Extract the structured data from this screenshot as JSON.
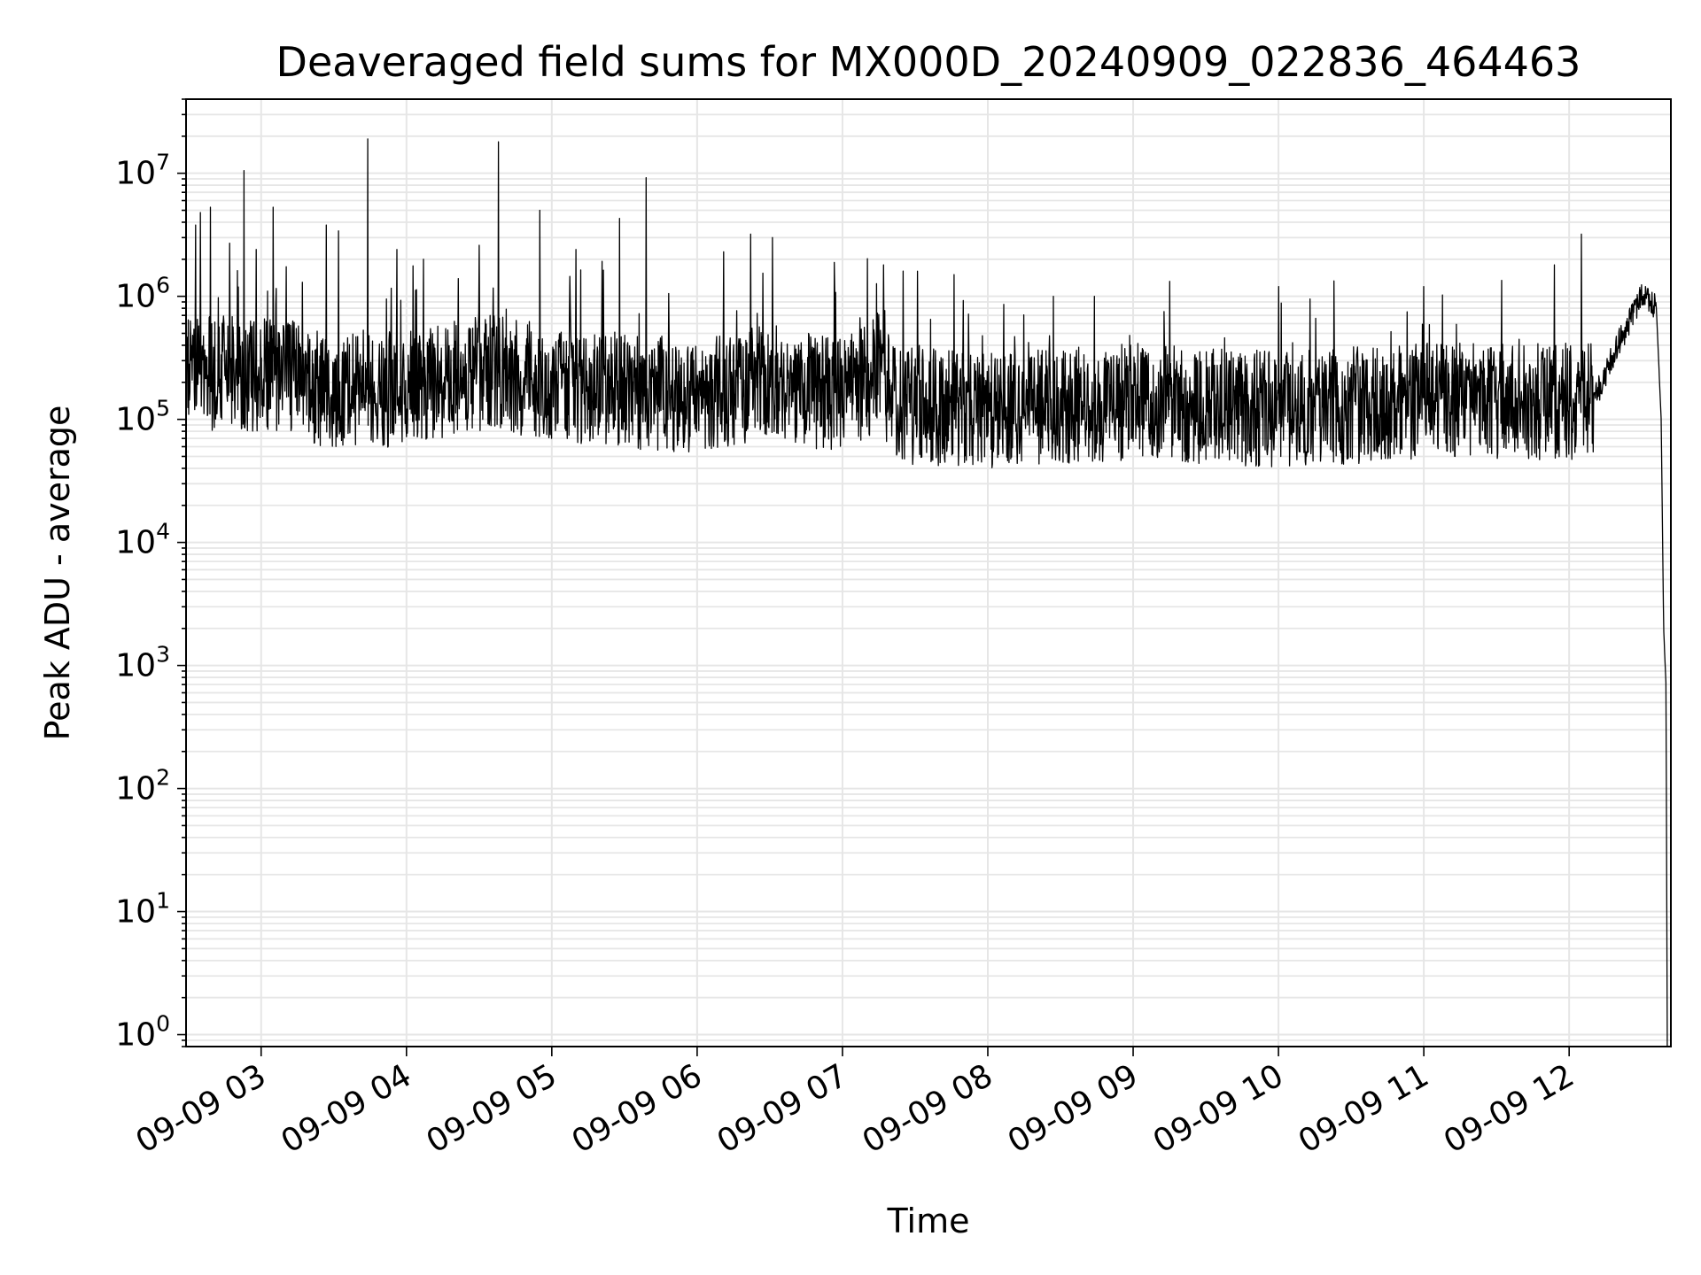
{
  "chart_data": {
    "type": "line",
    "title": "Deaveraged field sums for MX000D_20240909_022836_464463",
    "xlabel": "Time",
    "ylabel": "Peak ADU - average",
    "yscale": "log",
    "ylim": [
      0.8,
      40000000
    ],
    "xlim": [
      "2024-09-09T02:29:00",
      "2024-09-09T12:42:00"
    ],
    "grid": true,
    "line_color": "#000000",
    "grid_color": "#e6e6e6",
    "x_ticks": [
      {
        "t": "2024-09-09T03:00:00",
        "label": "09-09 03"
      },
      {
        "t": "2024-09-09T04:00:00",
        "label": "09-09 04"
      },
      {
        "t": "2024-09-09T05:00:00",
        "label": "09-09 05"
      },
      {
        "t": "2024-09-09T06:00:00",
        "label": "09-09 06"
      },
      {
        "t": "2024-09-09T07:00:00",
        "label": "09-09 07"
      },
      {
        "t": "2024-09-09T08:00:00",
        "label": "09-09 08"
      },
      {
        "t": "2024-09-09T09:00:00",
        "label": "09-09 09"
      },
      {
        "t": "2024-09-09T10:00:00",
        "label": "09-09 10"
      },
      {
        "t": "2024-09-09T11:00:00",
        "label": "09-09 11"
      },
      {
        "t": "2024-09-09T12:00:00",
        "label": "09-09 12"
      }
    ],
    "y_ticks": [
      {
        "v": 1,
        "base": "10",
        "exp": "0"
      },
      {
        "v": 10,
        "base": "10",
        "exp": "1"
      },
      {
        "v": 100,
        "base": "10",
        "exp": "2"
      },
      {
        "v": 1000,
        "base": "10",
        "exp": "3"
      },
      {
        "v": 10000,
        "base": "10",
        "exp": "4"
      },
      {
        "v": 100000,
        "base": "10",
        "exp": "5"
      },
      {
        "v": 1000000,
        "base": "10",
        "exp": "6"
      },
      {
        "v": 10000000,
        "base": "10",
        "exp": "7"
      }
    ],
    "series": [
      {
        "baseline_profile": [
          [
            "2024-09-09T02:29:00",
            250000
          ],
          [
            "2024-09-09T02:50:00",
            230000
          ],
          [
            "2024-09-09T03:10:00",
            220000
          ],
          [
            "2024-09-09T03:30:00",
            170000
          ],
          [
            "2024-09-09T04:00:00",
            180000
          ],
          [
            "2024-09-09T04:35:00",
            240000
          ],
          [
            "2024-09-09T05:00:00",
            200000
          ],
          [
            "2024-09-09T05:30:00",
            170000
          ],
          [
            "2024-09-09T06:00:00",
            150000
          ],
          [
            "2024-09-09T06:30:00",
            200000
          ],
          [
            "2024-09-09T07:00:00",
            150000
          ],
          [
            "2024-09-09T07:15:00",
            250000
          ],
          [
            "2024-09-09T07:22:00",
            130000
          ],
          [
            "2024-09-09T08:00:00",
            120000
          ],
          [
            "2024-09-09T09:00:00",
            140000
          ],
          [
            "2024-09-09T10:00:00",
            120000
          ],
          [
            "2024-09-09T11:00:00",
            140000
          ],
          [
            "2024-09-09T12:10:00",
            140000
          ],
          [
            "2024-09-09T12:20:00",
            400000
          ],
          [
            "2024-09-09T12:30:00",
            1000000
          ],
          [
            "2024-09-09T12:36:00",
            800000
          ],
          [
            "2024-09-09T12:38:00",
            100000
          ],
          [
            "2024-09-09T12:39:00",
            2000
          ],
          [
            "2024-09-09T12:40:00",
            700
          ],
          [
            "2024-09-09T12:40:30",
            1
          ]
        ],
        "spikes": [
          [
            "2024-09-09T02:33:00",
            3800000
          ],
          [
            "2024-09-09T02:35:00",
            4800000
          ],
          [
            "2024-09-09T02:39:00",
            5300000
          ],
          [
            "2024-09-09T02:47:00",
            2700000
          ],
          [
            "2024-09-09T02:53:00",
            10500000
          ],
          [
            "2024-09-09T02:58:00",
            2400000
          ],
          [
            "2024-09-09T03:05:00",
            5300000
          ],
          [
            "2024-09-09T03:17:00",
            1300000
          ],
          [
            "2024-09-09T03:27:00",
            3800000
          ],
          [
            "2024-09-09T03:32:00",
            3400000
          ],
          [
            "2024-09-09T03:44:00",
            19000000
          ],
          [
            "2024-09-09T03:56:00",
            2400000
          ],
          [
            "2024-09-09T04:07:00",
            2000000
          ],
          [
            "2024-09-09T04:30:00",
            2600000
          ],
          [
            "2024-09-09T04:38:00",
            18000000
          ],
          [
            "2024-09-09T04:55:00",
            5000000
          ],
          [
            "2024-09-09T05:10:00",
            2400000
          ],
          [
            "2024-09-09T05:28:00",
            4300000
          ],
          [
            "2024-09-09T05:39:00",
            9200000
          ],
          [
            "2024-09-09T06:11:00",
            2300000
          ],
          [
            "2024-09-09T06:22:00",
            3200000
          ],
          [
            "2024-09-09T06:31:00",
            3000000
          ],
          [
            "2024-09-09T07:31:00",
            1600000
          ],
          [
            "2024-09-09T07:46:00",
            1500000
          ],
          [
            "2024-09-09T08:27:00",
            1000000
          ],
          [
            "2024-09-09T08:44:00",
            1000000
          ],
          [
            "2024-09-09T10:00:00",
            1200000
          ],
          [
            "2024-09-09T11:00:00",
            1200000
          ],
          [
            "2024-09-09T11:54:00",
            1800000
          ],
          [
            "2024-09-09T12:05:00",
            3200000
          ]
        ]
      }
    ]
  }
}
